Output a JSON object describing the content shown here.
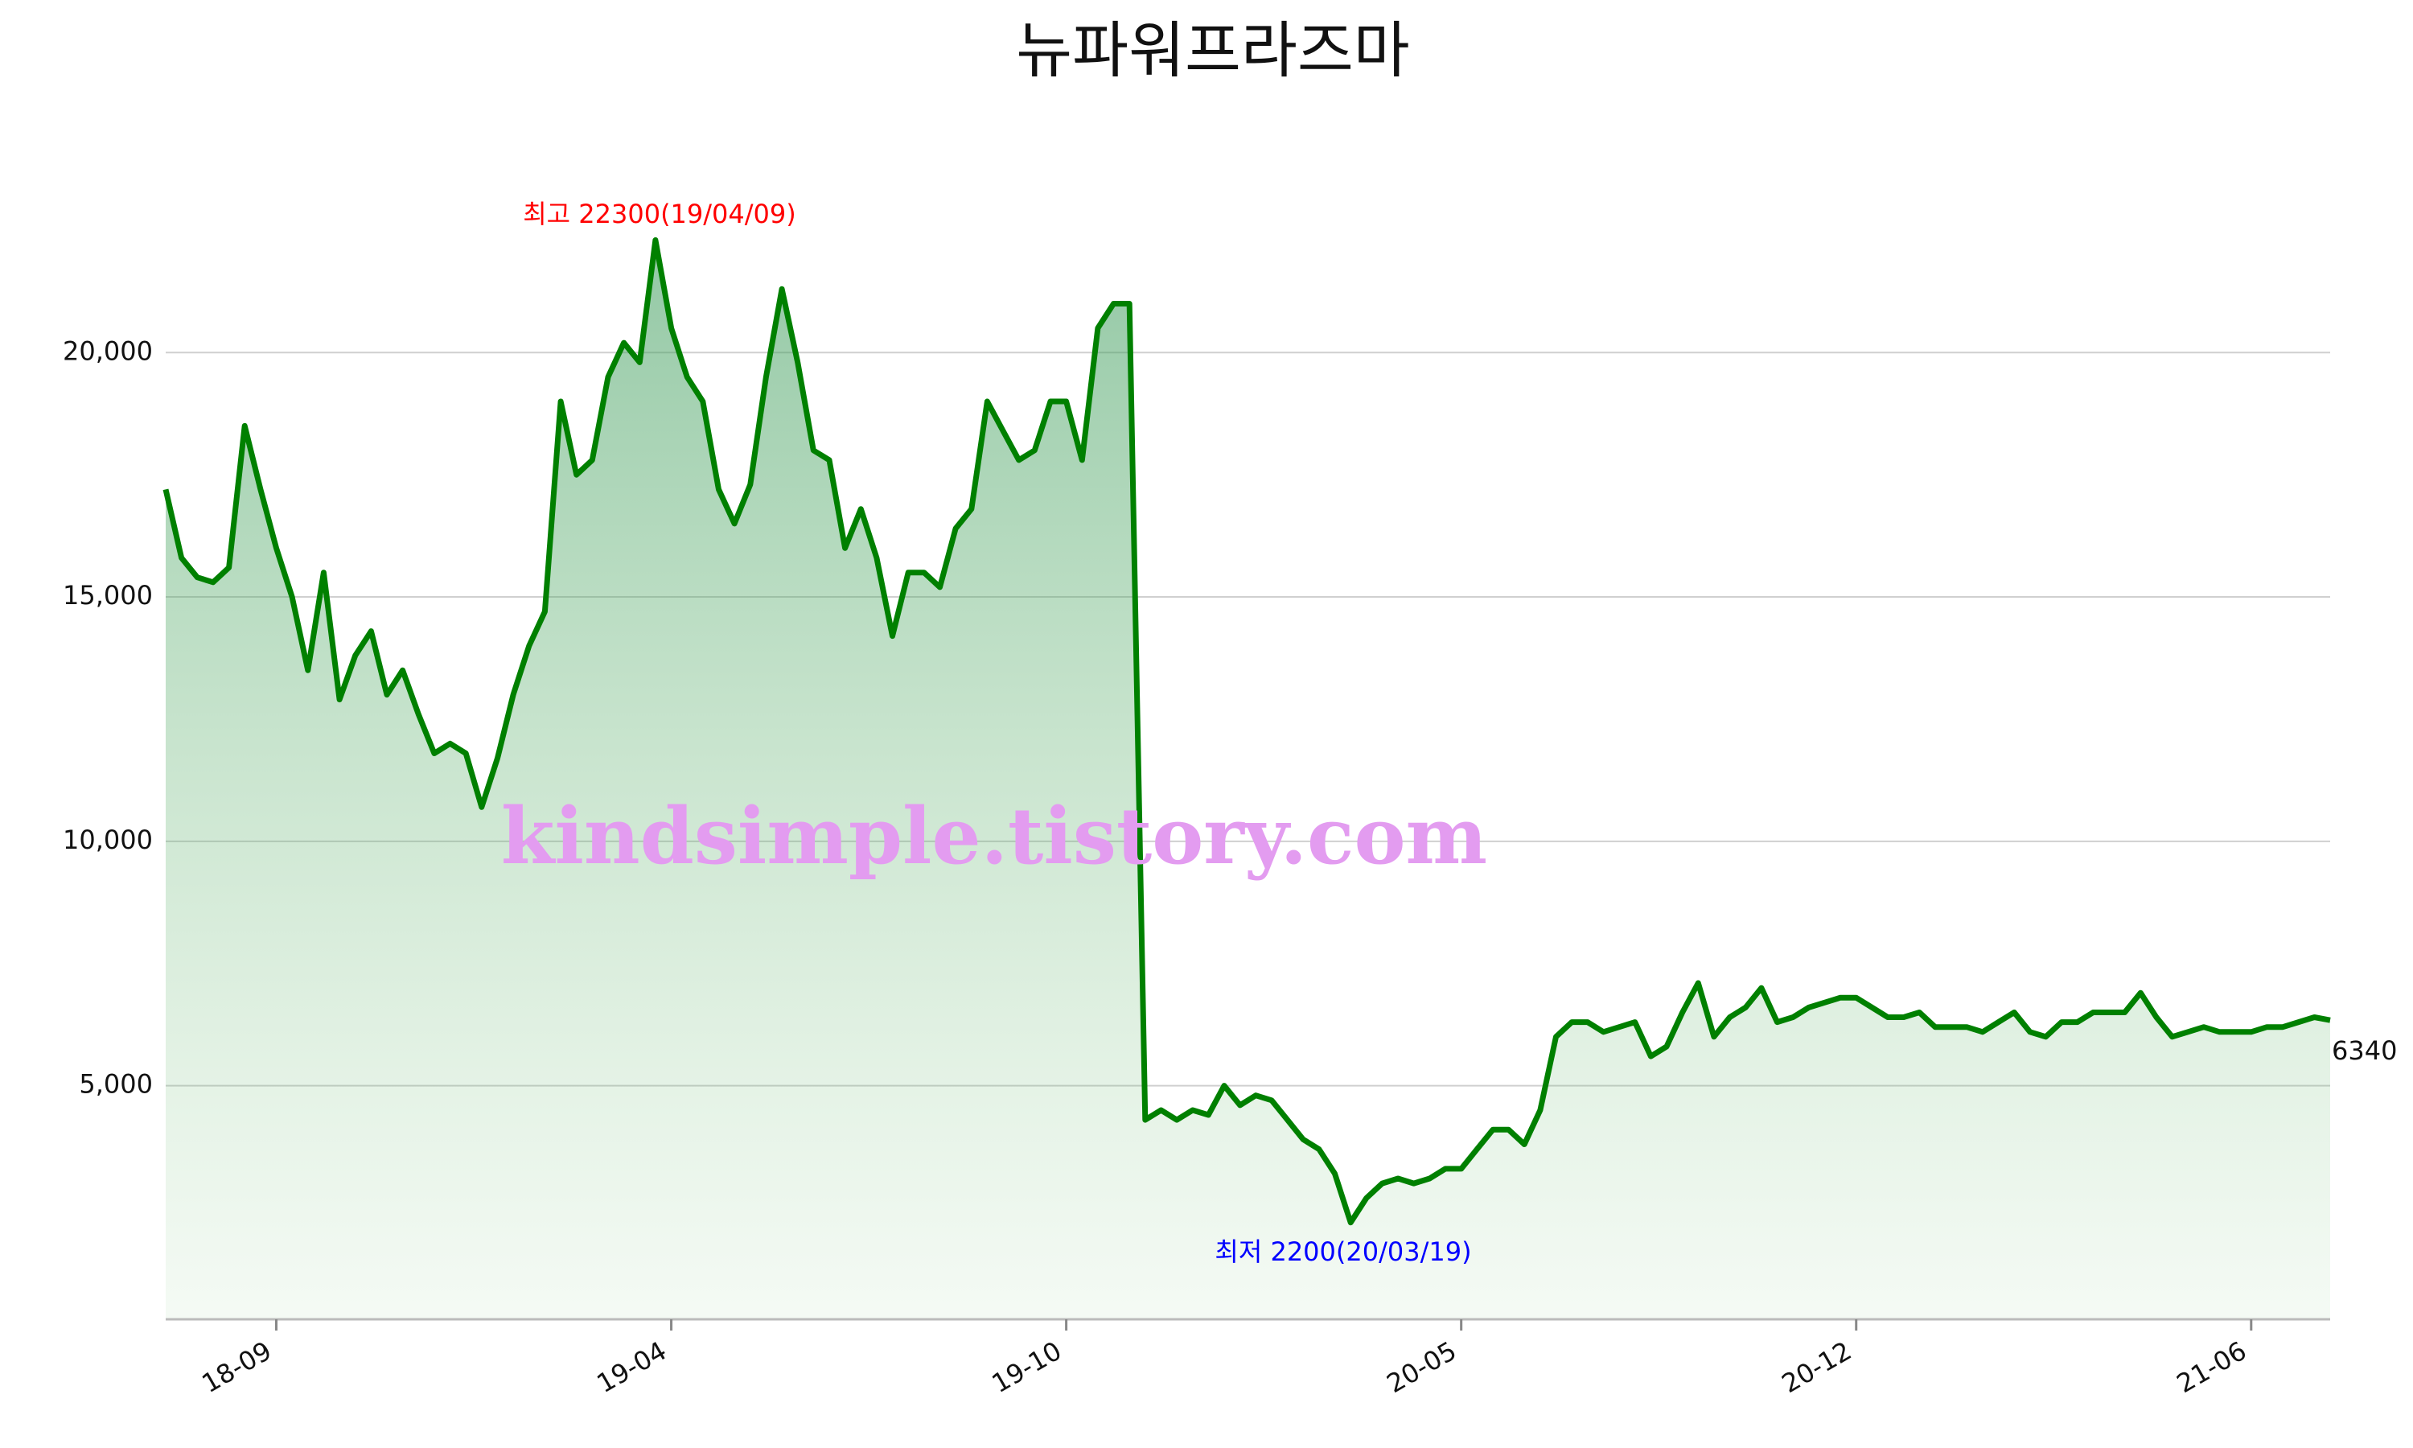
{
  "chart_data": {
    "type": "area-line",
    "title": "뉴파워프라즈마",
    "categories": [
      null,
      null,
      null,
      null,
      null,
      null,
      null,
      "18-09",
      null,
      null,
      null,
      null,
      null,
      null,
      null,
      null,
      null,
      null,
      null,
      null,
      null,
      null,
      null,
      null,
      null,
      null,
      null,
      null,
      null,
      null,
      null,
      null,
      "19-04",
      null,
      null,
      null,
      null,
      null,
      null,
      null,
      null,
      null,
      null,
      null,
      null,
      null,
      null,
      null,
      null,
      null,
      null,
      null,
      null,
      null,
      null,
      null,
      null,
      "19-10",
      null,
      null,
      null,
      null,
      null,
      null,
      null,
      null,
      null,
      null,
      null,
      null,
      null,
      null,
      null,
      null,
      null,
      null,
      null,
      null,
      null,
      null,
      null,
      null,
      "20-05",
      null,
      null,
      null,
      null,
      null,
      null,
      null,
      null,
      null,
      null,
      null,
      null,
      null,
      null,
      null,
      null,
      null,
      null,
      null,
      null,
      null,
      null,
      null,
      null,
      "20-12",
      null,
      null,
      null,
      null,
      null,
      null,
      null,
      null,
      null,
      null,
      null,
      null,
      null,
      null,
      null,
      null,
      null,
      null,
      null,
      null,
      null,
      null,
      null,
      null,
      "21-06",
      null,
      null,
      null,
      null,
      null
    ],
    "values": [
      17200,
      15800,
      15400,
      15300,
      15600,
      18500,
      17200,
      16000,
      15000,
      13500,
      15500,
      12900,
      13800,
      14300,
      13000,
      13500,
      12600,
      11800,
      12000,
      11800,
      10700,
      11700,
      13000,
      14000,
      14700,
      19000,
      17500,
      17800,
      19500,
      20200,
      19800,
      22300,
      20500,
      19500,
      19000,
      17200,
      16500,
      17300,
      19500,
      21300,
      19800,
      18000,
      17800,
      16000,
      16800,
      15800,
      14200,
      15500,
      15500,
      15200,
      16400,
      16800,
      19000,
      18400,
      17800,
      18000,
      19000,
      19000,
      17800,
      20500,
      21000,
      21000,
      4300,
      4500,
      4300,
      4500,
      4400,
      5000,
      4600,
      4800,
      4700,
      4300,
      3900,
      3700,
      3200,
      2200,
      2700,
      3000,
      3100,
      3000,
      3100,
      3300,
      3300,
      3700,
      4100,
      4100,
      3800,
      4500,
      6000,
      6300,
      6300,
      6100,
      6200,
      6300,
      5600,
      5800,
      6500,
      7100,
      6000,
      6400,
      6600,
      7000,
      6300,
      6400,
      6600,
      6700,
      6800,
      6800,
      6600,
      6400,
      6400,
      6500,
      6200,
      6200,
      6200,
      6100,
      6300,
      6500,
      6100,
      6000,
      6300,
      6300,
      6500,
      6500,
      6500,
      6900,
      6400,
      6000,
      6100,
      6200,
      6100,
      6100,
      6100,
      6200,
      6200,
      6300,
      6400,
      6340
    ],
    "color": "#008000",
    "ylim": [
      220,
      23000
    ],
    "yticks": [
      {
        "value": 5000,
        "label": "5,000"
      },
      {
        "value": 10000,
        "label": "10,000"
      },
      {
        "value": 15000,
        "label": "15,000"
      },
      {
        "value": 20000,
        "label": "20,000"
      }
    ],
    "grid": true,
    "annotations": [
      {
        "text": "최고 22300(19/04/09)",
        "color": "#ff0000"
      },
      {
        "text": "최저 2200(20/03/19)",
        "color": "#0000ff"
      }
    ],
    "watermark": "kindsimple.tistory.com"
  }
}
